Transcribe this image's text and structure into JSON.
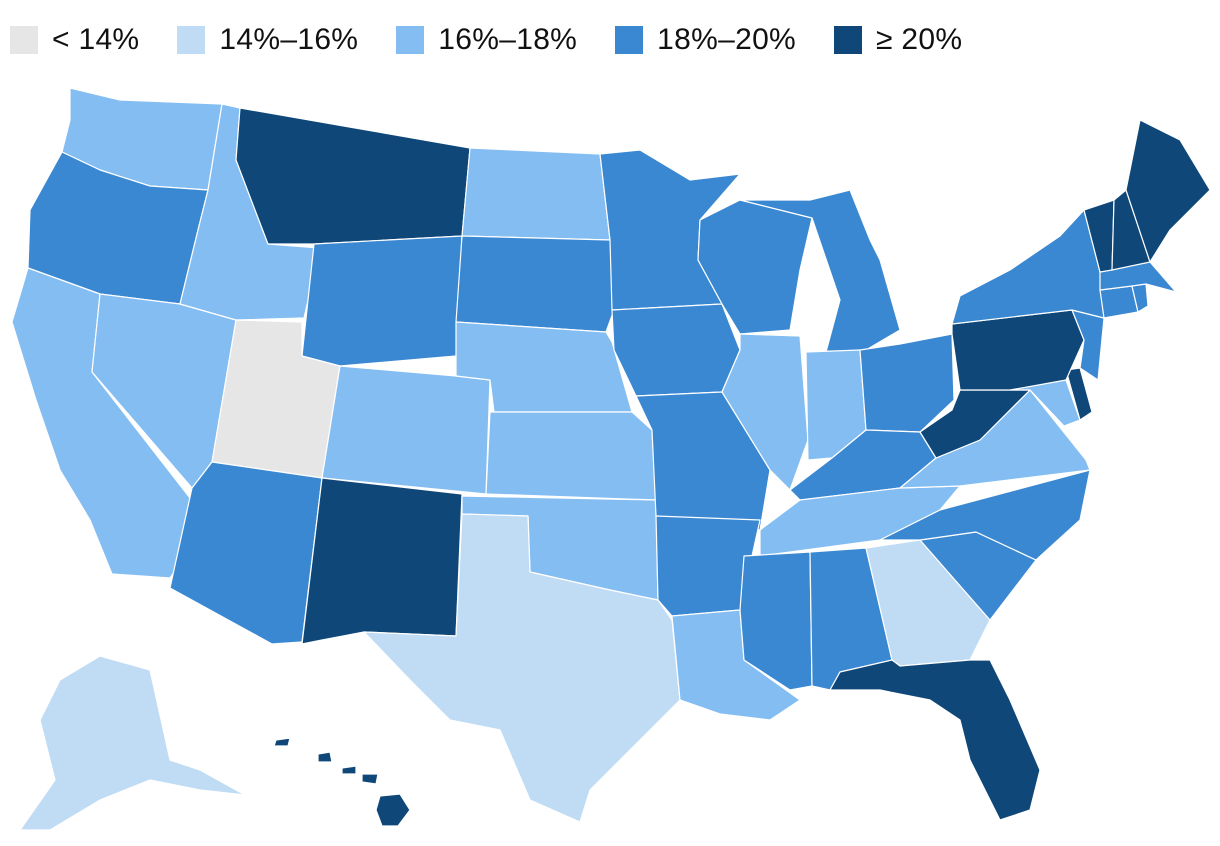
{
  "legend": {
    "bins": [
      {
        "label": "< 14%",
        "color": "#e6e6e6"
      },
      {
        "label": "14%–16%",
        "color": "#c0dcf5"
      },
      {
        "label": "16%–18%",
        "color": "#84bdf1"
      },
      {
        "label": "18%–20%",
        "color": "#3a88d2"
      },
      {
        "label": "≥ 20%",
        "color": "#0e4778"
      }
    ]
  },
  "states": [
    {
      "name": "Washington",
      "abbr": "WA",
      "bin": 2
    },
    {
      "name": "Oregon",
      "abbr": "OR",
      "bin": 3
    },
    {
      "name": "California",
      "abbr": "CA",
      "bin": 2
    },
    {
      "name": "Nevada",
      "abbr": "NV",
      "bin": 2
    },
    {
      "name": "Idaho",
      "abbr": "ID",
      "bin": 2
    },
    {
      "name": "Montana",
      "abbr": "MT",
      "bin": 4
    },
    {
      "name": "Wyoming",
      "abbr": "WY",
      "bin": 3
    },
    {
      "name": "Utah",
      "abbr": "UT",
      "bin": 0
    },
    {
      "name": "Arizona",
      "abbr": "AZ",
      "bin": 3
    },
    {
      "name": "Colorado",
      "abbr": "CO",
      "bin": 2
    },
    {
      "name": "New Mexico",
      "abbr": "NM",
      "bin": 4
    },
    {
      "name": "North Dakota",
      "abbr": "ND",
      "bin": 2
    },
    {
      "name": "South Dakota",
      "abbr": "SD",
      "bin": 3
    },
    {
      "name": "Nebraska",
      "abbr": "NE",
      "bin": 2
    },
    {
      "name": "Kansas",
      "abbr": "KS",
      "bin": 2
    },
    {
      "name": "Oklahoma",
      "abbr": "OK",
      "bin": 2
    },
    {
      "name": "Texas",
      "abbr": "TX",
      "bin": 1
    },
    {
      "name": "Minnesota",
      "abbr": "MN",
      "bin": 3
    },
    {
      "name": "Iowa",
      "abbr": "IA",
      "bin": 3
    },
    {
      "name": "Missouri",
      "abbr": "MO",
      "bin": 3
    },
    {
      "name": "Arkansas",
      "abbr": "AR",
      "bin": 3
    },
    {
      "name": "Louisiana",
      "abbr": "LA",
      "bin": 2
    },
    {
      "name": "Wisconsin",
      "abbr": "WI",
      "bin": 3
    },
    {
      "name": "Illinois",
      "abbr": "IL",
      "bin": 2
    },
    {
      "name": "Michigan",
      "abbr": "MI",
      "bin": 3
    },
    {
      "name": "Indiana",
      "abbr": "IN",
      "bin": 2
    },
    {
      "name": "Ohio",
      "abbr": "OH",
      "bin": 3
    },
    {
      "name": "Kentucky",
      "abbr": "KY",
      "bin": 3
    },
    {
      "name": "Tennessee",
      "abbr": "TN",
      "bin": 2
    },
    {
      "name": "Mississippi",
      "abbr": "MS",
      "bin": 3
    },
    {
      "name": "Alabama",
      "abbr": "AL",
      "bin": 3
    },
    {
      "name": "Georgia",
      "abbr": "GA",
      "bin": 1
    },
    {
      "name": "Florida",
      "abbr": "FL",
      "bin": 4
    },
    {
      "name": "South Carolina",
      "abbr": "SC",
      "bin": 3
    },
    {
      "name": "North Carolina",
      "abbr": "NC",
      "bin": 3
    },
    {
      "name": "Virginia",
      "abbr": "VA",
      "bin": 2
    },
    {
      "name": "West Virginia",
      "abbr": "WV",
      "bin": 4
    },
    {
      "name": "Maryland",
      "abbr": "MD",
      "bin": 2
    },
    {
      "name": "Delaware",
      "abbr": "DE",
      "bin": 4
    },
    {
      "name": "Pennsylvania",
      "abbr": "PA",
      "bin": 4
    },
    {
      "name": "New Jersey",
      "abbr": "NJ",
      "bin": 3
    },
    {
      "name": "New York",
      "abbr": "NY",
      "bin": 3
    },
    {
      "name": "Connecticut",
      "abbr": "CT",
      "bin": 3
    },
    {
      "name": "Rhode Island",
      "abbr": "RI",
      "bin": 3
    },
    {
      "name": "Massachusetts",
      "abbr": "MA",
      "bin": 3
    },
    {
      "name": "Vermont",
      "abbr": "VT",
      "bin": 4
    },
    {
      "name": "New Hampshire",
      "abbr": "NH",
      "bin": 4
    },
    {
      "name": "Maine",
      "abbr": "ME",
      "bin": 4
    },
    {
      "name": "Alaska",
      "abbr": "AK",
      "bin": 1
    },
    {
      "name": "Hawaii",
      "abbr": "HI",
      "bin": 4
    }
  ]
}
